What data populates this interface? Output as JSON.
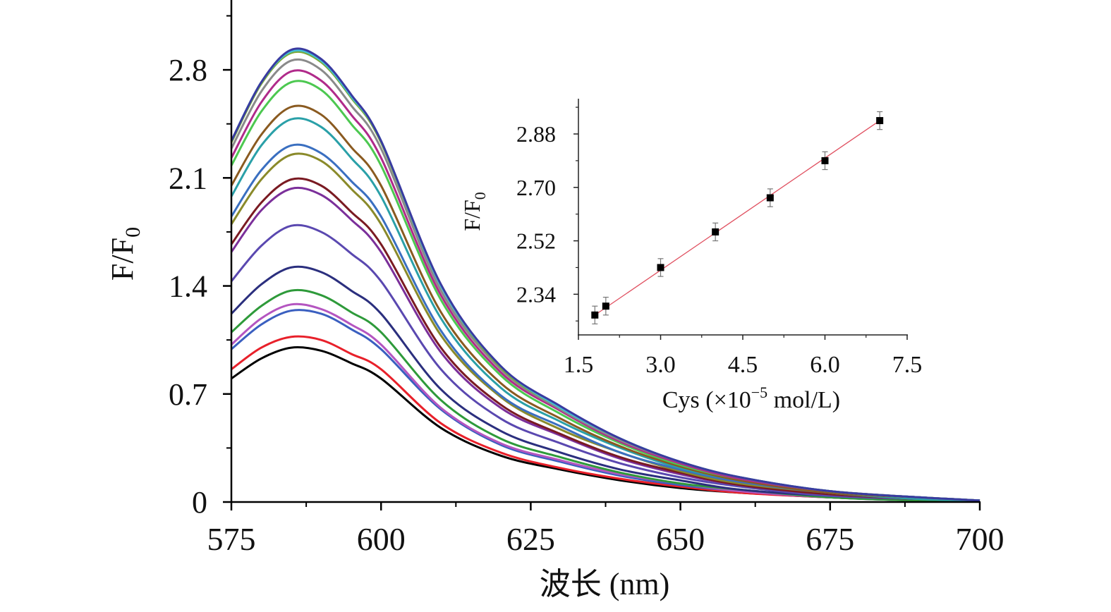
{
  "chart_data": [
    {
      "type": "line",
      "xlabel": "波长 (nm)",
      "ylabel": "F/F0",
      "ylabel_main": "F/F",
      "ylabel_sub": "0",
      "xlim": [
        575,
        700
      ],
      "ylim": [
        0,
        3.2
      ],
      "xticks": [
        "575",
        "600",
        "625",
        "650",
        "675",
        "700"
      ],
      "yticks": [
        "0",
        "0.7",
        "1.4",
        "2.1",
        "2.8"
      ],
      "grid": false,
      "x": [
        575,
        580,
        585,
        590,
        595,
        600,
        610,
        620,
        630,
        640,
        650,
        660,
        675,
        690,
        700
      ],
      "series": [
        {
          "color": "#000000",
          "values": [
            0.8,
            0.93,
            1.0,
            0.98,
            0.9,
            0.8,
            0.48,
            0.3,
            0.21,
            0.14,
            0.09,
            0.06,
            0.03,
            0.01,
            0.01
          ]
        },
        {
          "color": "#e8202a",
          "values": [
            0.86,
            1.0,
            1.07,
            1.05,
            0.96,
            0.86,
            0.51,
            0.32,
            0.22,
            0.15,
            0.1,
            0.06,
            0.03,
            0.01,
            0.01
          ]
        },
        {
          "color": "#3a5fc0",
          "values": [
            0.99,
            1.15,
            1.24,
            1.22,
            1.12,
            0.99,
            0.6,
            0.37,
            0.26,
            0.17,
            0.11,
            0.07,
            0.03,
            0.01,
            0.01
          ]
        },
        {
          "color": "#b455c0",
          "values": [
            1.02,
            1.19,
            1.28,
            1.25,
            1.15,
            1.02,
            0.61,
            0.38,
            0.27,
            0.18,
            0.12,
            0.07,
            0.03,
            0.01,
            0.01
          ]
        },
        {
          "color": "#2e9a3a",
          "values": [
            1.1,
            1.27,
            1.37,
            1.34,
            1.23,
            1.1,
            0.66,
            0.41,
            0.29,
            0.19,
            0.12,
            0.08,
            0.03,
            0.01,
            0.01
          ]
        },
        {
          "color": "#2b2f7e",
          "values": [
            1.22,
            1.41,
            1.52,
            1.49,
            1.37,
            1.22,
            0.73,
            0.46,
            0.32,
            0.21,
            0.14,
            0.08,
            0.04,
            0.02,
            0.01
          ]
        },
        {
          "color": "#5a48b0",
          "values": [
            1.43,
            1.66,
            1.79,
            1.75,
            1.61,
            1.43,
            0.86,
            0.54,
            0.38,
            0.25,
            0.16,
            0.1,
            0.04,
            0.02,
            0.01
          ]
        },
        {
          "color": "#7b2f9a",
          "values": [
            1.62,
            1.89,
            2.03,
            1.99,
            1.83,
            1.62,
            0.97,
            0.61,
            0.43,
            0.28,
            0.18,
            0.11,
            0.05,
            0.02,
            0.01
          ]
        },
        {
          "color": "#7a1a22",
          "values": [
            1.67,
            1.94,
            2.09,
            2.05,
            1.88,
            1.67,
            1.0,
            0.63,
            0.44,
            0.29,
            0.19,
            0.11,
            0.05,
            0.02,
            0.01
          ]
        },
        {
          "color": "#8a8a2a",
          "values": [
            1.8,
            2.09,
            2.25,
            2.21,
            2.03,
            1.8,
            1.08,
            0.68,
            0.47,
            0.32,
            0.2,
            0.12,
            0.06,
            0.02,
            0.01
          ]
        },
        {
          "color": "#3a6fc0",
          "values": [
            1.85,
            2.15,
            2.31,
            2.26,
            2.08,
            1.85,
            1.11,
            0.69,
            0.49,
            0.32,
            0.21,
            0.13,
            0.06,
            0.02,
            0.01
          ]
        },
        {
          "color": "#2aa0a8",
          "values": [
            1.98,
            2.31,
            2.48,
            2.43,
            2.23,
            1.98,
            1.19,
            0.74,
            0.52,
            0.35,
            0.22,
            0.14,
            0.06,
            0.02,
            0.01
          ]
        },
        {
          "color": "#8a5a20",
          "values": [
            2.05,
            2.38,
            2.56,
            2.51,
            2.3,
            2.05,
            1.23,
            0.77,
            0.54,
            0.36,
            0.23,
            0.14,
            0.06,
            0.03,
            0.01
          ]
        },
        {
          "color": "#4cc850",
          "values": [
            2.18,
            2.53,
            2.72,
            2.67,
            2.45,
            2.18,
            1.31,
            0.82,
            0.57,
            0.38,
            0.24,
            0.15,
            0.07,
            0.03,
            0.01
          ]
        },
        {
          "color": "#b02a8a",
          "values": [
            2.23,
            2.59,
            2.79,
            2.73,
            2.51,
            2.23,
            1.34,
            0.84,
            0.59,
            0.39,
            0.25,
            0.15,
            0.07,
            0.03,
            0.01
          ]
        },
        {
          "color": "#8a8a8a",
          "values": [
            2.29,
            2.66,
            2.86,
            2.8,
            2.57,
            2.29,
            1.37,
            0.86,
            0.6,
            0.4,
            0.26,
            0.16,
            0.07,
            0.03,
            0.01
          ]
        },
        {
          "color": "#7aa83a",
          "values": [
            2.33,
            2.71,
            2.91,
            2.85,
            2.62,
            2.33,
            1.4,
            0.87,
            0.61,
            0.41,
            0.26,
            0.16,
            0.07,
            0.03,
            0.01
          ]
        },
        {
          "color": "#40c0d8",
          "values": [
            2.34,
            2.72,
            2.92,
            2.86,
            2.63,
            2.34,
            1.4,
            0.88,
            0.61,
            0.41,
            0.26,
            0.16,
            0.07,
            0.03,
            0.01
          ]
        },
        {
          "color": "#3a3aa0",
          "values": [
            2.34,
            2.72,
            2.93,
            2.87,
            2.64,
            2.34,
            1.41,
            0.88,
            0.62,
            0.41,
            0.26,
            0.16,
            0.07,
            0.03,
            0.01
          ]
        }
      ]
    },
    {
      "type": "scatter",
      "xlabel": "Cys (×10⁻⁵ mol/L)",
      "xlabel_main": "Cys (×10",
      "xlabel_sup": "−5",
      "xlabel_tail": " mol/L)",
      "ylabel": "F/F0",
      "ylabel_main": "F/F",
      "ylabel_sub": "0",
      "xlim": [
        1.5,
        7.5
      ],
      "ylim": [
        2.2,
        3.0
      ],
      "xticks": [
        "1.5",
        "3.0",
        "4.5",
        "6.0",
        "7.5"
      ],
      "yticks": [
        "2.34",
        "2.52",
        "2.70",
        "2.88"
      ],
      "grid": false,
      "x": [
        1.8,
        2.0,
        3.0,
        4.0,
        5.0,
        6.0,
        7.0
      ],
      "y": [
        2.27,
        2.3,
        2.43,
        2.55,
        2.665,
        2.79,
        2.925
      ],
      "error": [
        0.03,
        0.03,
        0.03,
        0.03,
        0.03,
        0.03,
        0.03
      ],
      "marker_color": "#000000",
      "fit": {
        "slope": 0.126,
        "intercept": 2.043,
        "color": "#e05060"
      }
    }
  ]
}
